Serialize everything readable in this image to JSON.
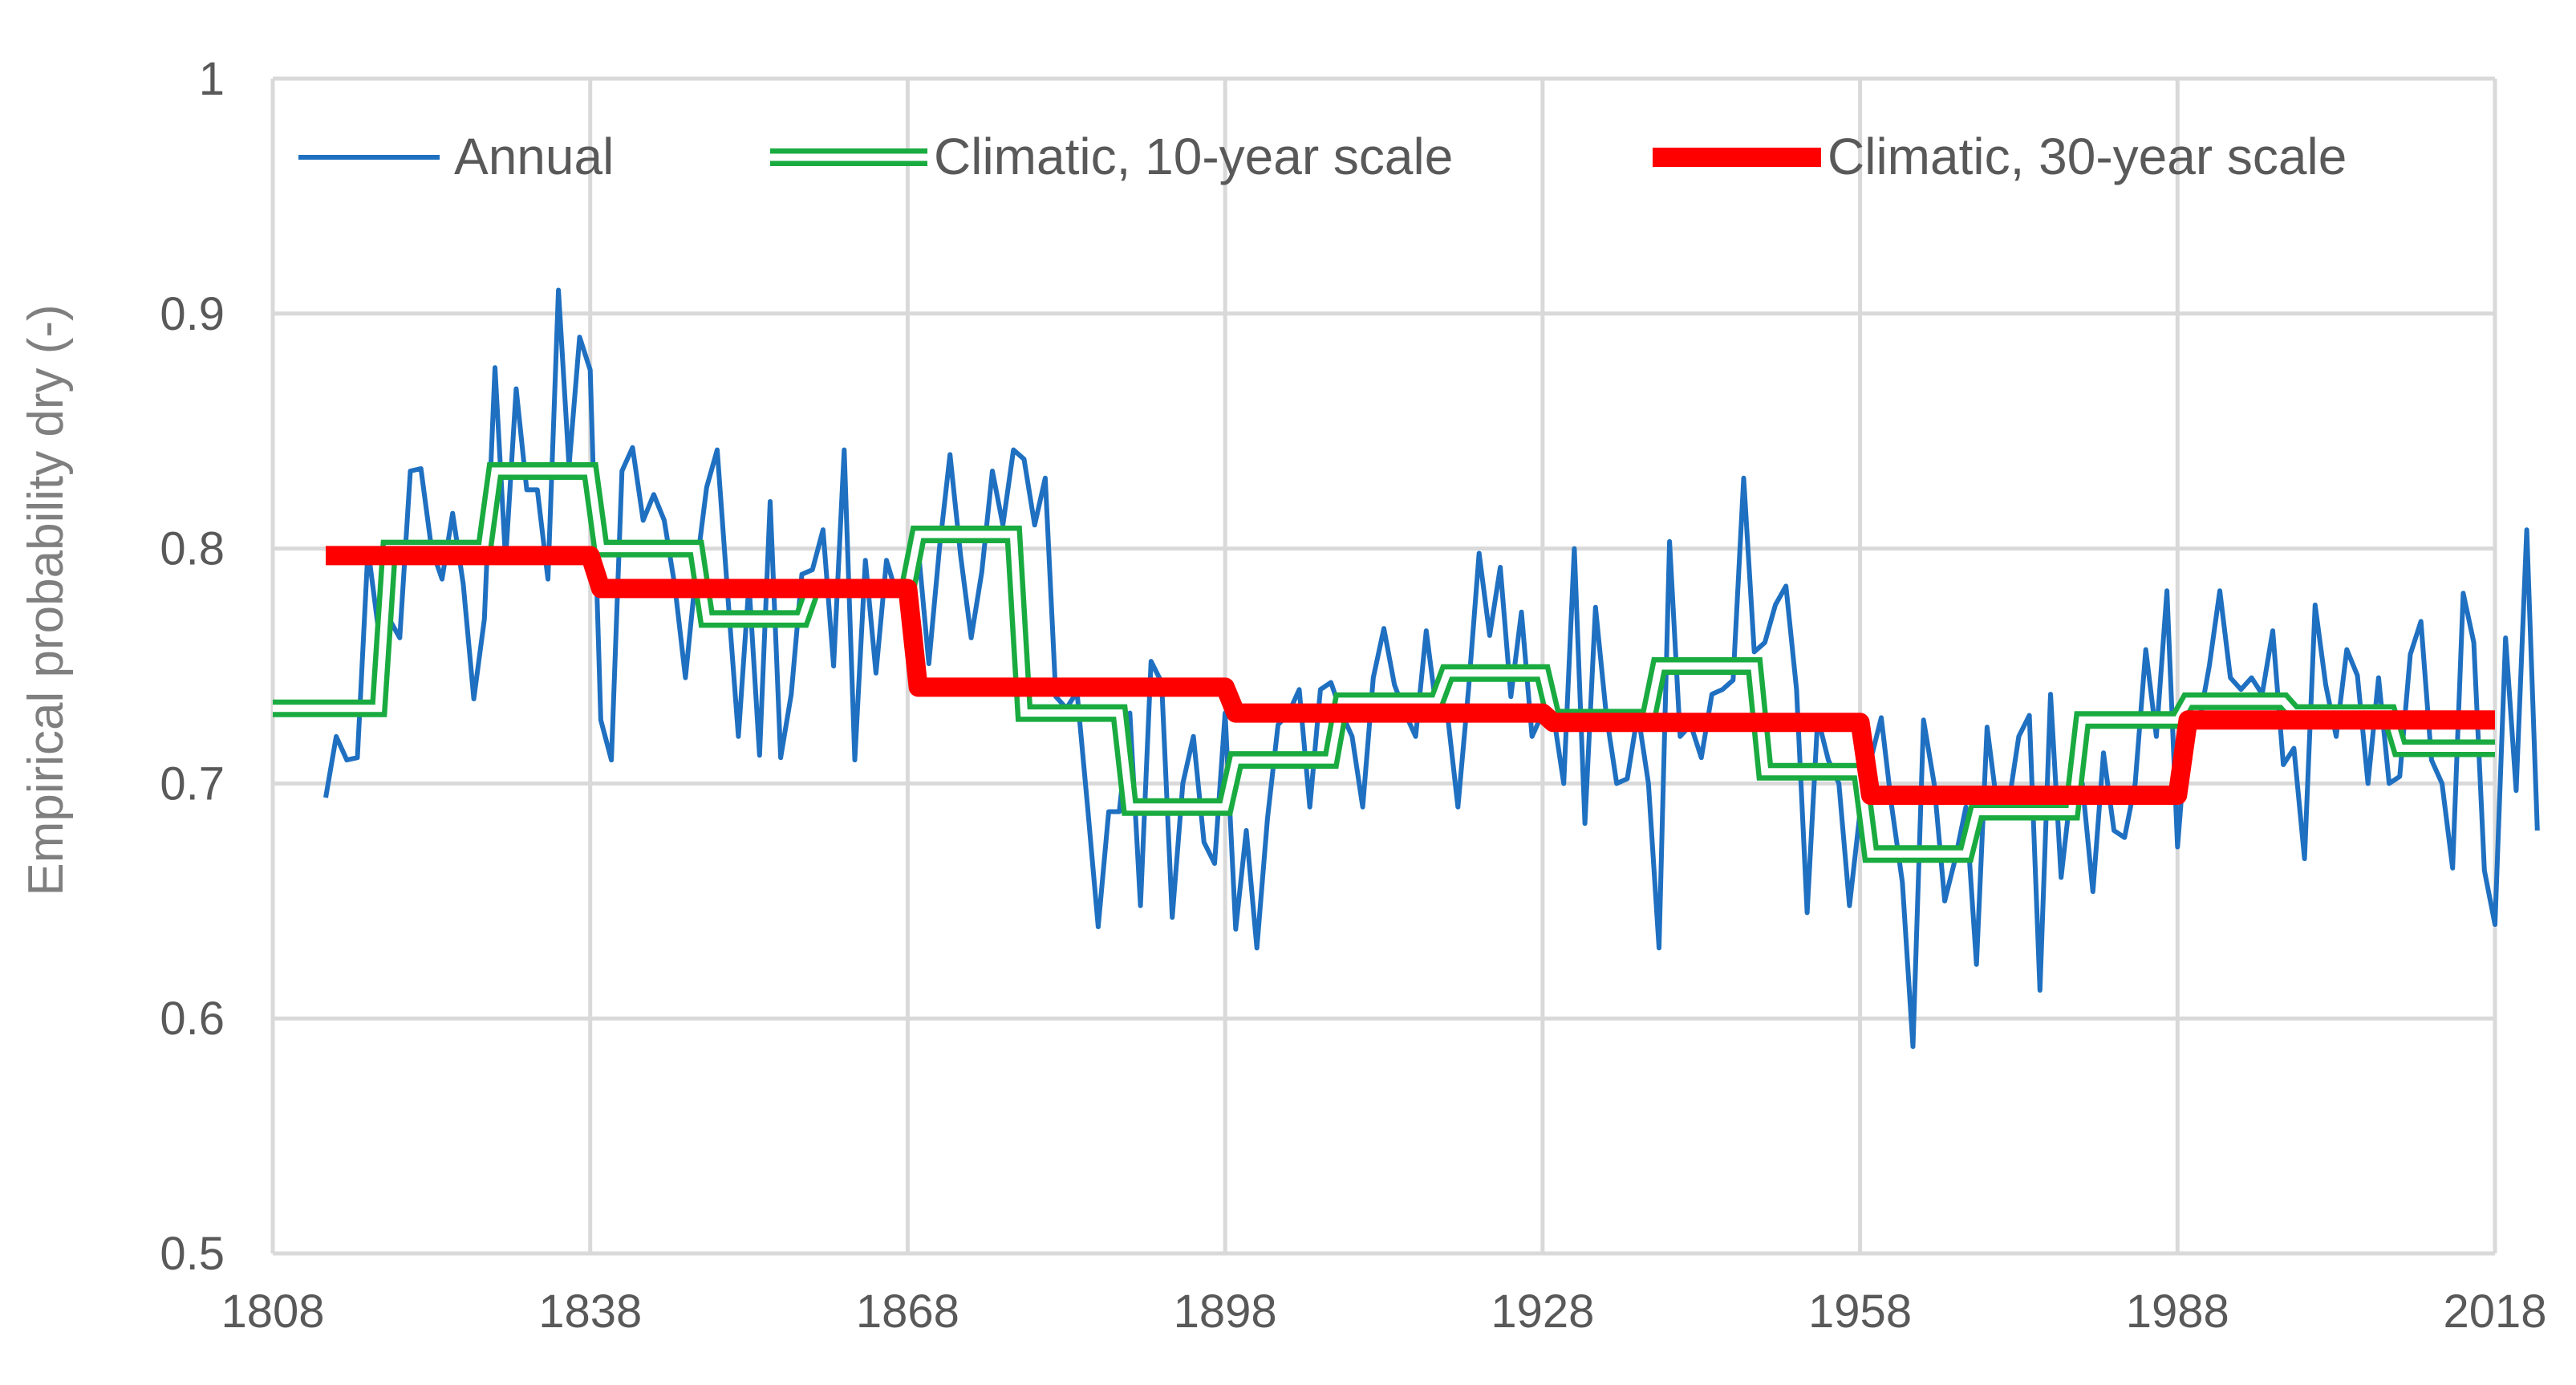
{
  "chart_data": {
    "type": "line",
    "title": "",
    "xlabel": "",
    "ylabel": "Empirical probability dry  (-)",
    "xlim": [
      1808,
      2018
    ],
    "ylim": [
      0.5,
      1.0
    ],
    "x_ticks": [
      1808,
      1838,
      1868,
      1898,
      1928,
      1958,
      1988,
      2018
    ],
    "x_tick_labels": [
      "1808",
      "1838",
      "1868",
      "1898",
      "1928",
      "1958",
      "1988",
      "2018"
    ],
    "y_ticks": [
      0.5,
      0.6,
      0.7,
      0.8,
      0.9,
      1.0
    ],
    "y_tick_labels": [
      "0.5",
      "0.6",
      "0.7",
      "0.8",
      "0.9",
      "1"
    ],
    "grid": true,
    "legend_position": "top",
    "colors": {
      "annual": "#1f70c1",
      "climatic10": "#1aab40",
      "climatic30": "#ff0000",
      "grid": "#d9d9d9",
      "axis_text": "#595959"
    },
    "series": [
      {
        "name": "Annual",
        "style": "line",
        "x_start": 1813,
        "values": [
          0.694,
          0.72,
          0.71,
          0.711,
          0.8,
          0.765,
          0.77,
          0.762,
          0.833,
          0.834,
          0.8,
          0.787,
          0.815,
          0.785,
          0.736,
          0.77,
          0.877,
          0.795,
          0.868,
          0.825,
          0.825,
          0.787,
          0.91,
          0.835,
          0.89,
          0.876,
          0.727,
          0.71,
          0.833,
          0.843,
          0.812,
          0.823,
          0.812,
          0.784,
          0.745,
          0.79,
          0.826,
          0.842,
          0.78,
          0.72,
          0.785,
          0.712,
          0.82,
          0.711,
          0.738,
          0.789,
          0.791,
          0.808,
          0.75,
          0.842,
          0.71,
          0.795,
          0.747,
          0.795,
          0.78,
          0.79,
          0.8,
          0.751,
          0.8,
          0.84,
          0.797,
          0.762,
          0.79,
          0.833,
          0.81,
          0.842,
          0.838,
          0.81,
          0.83,
          0.737,
          0.732,
          0.739,
          0.69,
          0.639,
          0.688,
          0.688,
          0.73,
          0.648,
          0.752,
          0.743,
          0.643,
          0.7,
          0.72,
          0.675,
          0.666,
          0.73,
          0.638,
          0.68,
          0.63,
          0.685,
          0.725,
          0.73,
          0.74,
          0.69,
          0.74,
          0.743,
          0.73,
          0.72,
          0.69,
          0.745,
          0.766,
          0.742,
          0.73,
          0.72,
          0.765,
          0.73,
          0.73,
          0.69,
          0.74,
          0.798,
          0.763,
          0.792,
          0.737,
          0.773,
          0.72,
          0.73,
          0.73,
          0.7,
          0.8,
          0.683,
          0.775,
          0.73,
          0.7,
          0.702,
          0.73,
          0.7,
          0.63,
          0.803,
          0.72,
          0.725,
          0.711,
          0.738,
          0.74,
          0.744,
          0.83,
          0.756,
          0.76,
          0.776,
          0.784,
          0.74,
          0.645,
          0.728,
          0.71,
          0.7,
          0.648,
          0.688,
          0.71,
          0.728,
          0.69,
          0.658,
          0.588,
          0.727,
          0.7,
          0.65,
          0.668,
          0.69,
          0.623,
          0.724,
          0.689,
          0.69,
          0.72,
          0.729,
          0.612,
          0.738,
          0.66,
          0.7,
          0.7,
          0.654,
          0.713,
          0.68,
          0.677,
          0.7,
          0.757,
          0.72,
          0.782,
          0.673,
          0.73,
          0.725,
          0.75,
          0.782,
          0.745,
          0.74,
          0.745,
          0.738,
          0.765,
          0.708,
          0.715,
          0.668,
          0.776,
          0.742,
          0.72,
          0.757,
          0.746,
          0.7,
          0.745,
          0.7,
          0.703,
          0.755,
          0.769,
          0.71,
          0.7,
          0.664,
          0.781,
          0.76,
          0.663,
          0.64,
          0.762,
          0.697,
          0.808,
          0.68
        ]
      },
      {
        "name": "Climatic, 10-year scale",
        "style": "step",
        "steps": [
          {
            "from": 1808,
            "to": 1818,
            "value": 0.732
          },
          {
            "from": 1818,
            "to": 1828,
            "value": 0.8
          },
          {
            "from": 1828,
            "to": 1838,
            "value": 0.833
          },
          {
            "from": 1838,
            "to": 1848,
            "value": 0.8
          },
          {
            "from": 1848,
            "to": 1858,
            "value": 0.77
          },
          {
            "from": 1858,
            "to": 1868,
            "value": 0.783
          },
          {
            "from": 1868,
            "to": 1878,
            "value": 0.806
          },
          {
            "from": 1878,
            "to": 1888,
            "value": 0.73
          },
          {
            "from": 1888,
            "to": 1898,
            "value": 0.69
          },
          {
            "from": 1898,
            "to": 1908,
            "value": 0.71
          },
          {
            "from": 1908,
            "to": 1918,
            "value": 0.735
          },
          {
            "from": 1918,
            "to": 1928,
            "value": 0.747
          },
          {
            "from": 1928,
            "to": 1938,
            "value": 0.728
          },
          {
            "from": 1938,
            "to": 1948,
            "value": 0.75
          },
          {
            "from": 1948,
            "to": 1958,
            "value": 0.705
          },
          {
            "from": 1958,
            "to": 1968,
            "value": 0.67
          },
          {
            "from": 1968,
            "to": 1978,
            "value": 0.688
          },
          {
            "from": 1978,
            "to": 1988,
            "value": 0.727
          },
          {
            "from": 1988,
            "to": 1998,
            "value": 0.735
          },
          {
            "from": 1998,
            "to": 2008,
            "value": 0.73
          },
          {
            "from": 2008,
            "to": 2018,
            "value": 0.715
          }
        ]
      },
      {
        "name": "Climatic, 30-year scale",
        "style": "step",
        "steps": [
          {
            "from": 1813,
            "to": 1838,
            "value": 0.797
          },
          {
            "from": 1838,
            "to": 1868,
            "value": 0.783
          },
          {
            "from": 1868,
            "to": 1898,
            "value": 0.741
          },
          {
            "from": 1898,
            "to": 1928,
            "value": 0.73
          },
          {
            "from": 1928,
            "to": 1958,
            "value": 0.726
          },
          {
            "from": 1958,
            "to": 1988,
            "value": 0.695
          },
          {
            "from": 1988,
            "to": 2018,
            "value": 0.727
          }
        ]
      }
    ]
  }
}
